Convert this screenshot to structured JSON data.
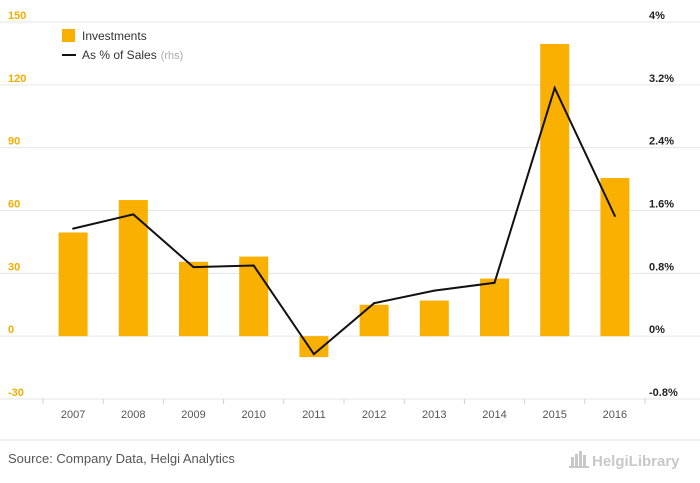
{
  "chart_data": {
    "type": "bar",
    "categories": [
      "2007",
      "2008",
      "2009",
      "2010",
      "2011",
      "2012",
      "2013",
      "2014",
      "2015",
      "2016"
    ],
    "series": [
      {
        "name": "Investments",
        "type": "bar",
        "axis": "left",
        "color": "#f9b000",
        "values": [
          49.5,
          65.0,
          35.5,
          38.0,
          -10.0,
          15.0,
          17.0,
          27.5,
          139.5,
          75.5
        ]
      },
      {
        "name": "As % of Sales",
        "name_suffix": "(rhs)",
        "type": "line",
        "axis": "right",
        "color": "#111111",
        "values": [
          1.37,
          1.55,
          0.88,
          0.9,
          -0.23,
          0.42,
          0.58,
          0.68,
          3.16,
          1.53
        ]
      }
    ],
    "y_left": {
      "ylim": [
        -30,
        150
      ],
      "ticks": [
        -30,
        0,
        30,
        60,
        90,
        120,
        150
      ],
      "tick_labels": [
        "-30",
        "0",
        "30",
        "60",
        "90",
        "120",
        "150"
      ],
      "color": "#f2ad00"
    },
    "y_right": {
      "ylim": [
        -0.8,
        4.0
      ],
      "ticks": [
        -0.8,
        0,
        0.8,
        1.6,
        2.4,
        3.2,
        4.0
      ],
      "tick_labels": [
        "-0.8%",
        "0%",
        "0.8%",
        "1.6%",
        "2.4%",
        "3.2%",
        "4%"
      ]
    },
    "grid": true,
    "legend_position": "top-left"
  },
  "footer": {
    "source": "Source: Company Data, Helgi Analytics",
    "logo": "HelgiLibrary"
  }
}
